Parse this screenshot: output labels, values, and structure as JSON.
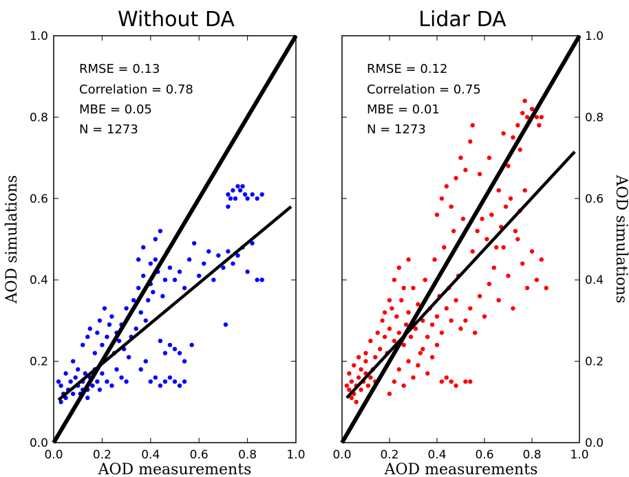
{
  "chart_data": [
    {
      "type": "scatter",
      "title": "Without DA",
      "xlabel": "AOD measurements",
      "ylabel": "AOD simulations",
      "xlim": [
        0.0,
        1.0
      ],
      "ylim": [
        0.0,
        1.0
      ],
      "xticks": [
        "0.0",
        "0.2",
        "0.4",
        "0.6",
        "0.8",
        "1.0"
      ],
      "yticks": [
        "0.0",
        "0.2",
        "0.4",
        "0.6",
        "0.8",
        "1.0"
      ],
      "ytick_side": "left",
      "ylabel_side": "left",
      "point_color": "#0000ff",
      "stats": [
        "RMSE = 0.13",
        "Correlation = 0.78",
        "MBE = 0.05",
        "N = 1273"
      ],
      "lines": [
        {
          "name": "1:1",
          "x": [
            0.0,
            1.0
          ],
          "y": [
            0.0,
            1.0
          ]
        },
        {
          "name": "fit",
          "x": [
            0.02,
            0.98
          ],
          "y": [
            0.105,
            0.58
          ]
        }
      ],
      "points": [
        [
          0.02,
          0.15
        ],
        [
          0.03,
          0.14
        ],
        [
          0.04,
          0.12
        ],
        [
          0.05,
          0.11
        ],
        [
          0.06,
          0.13
        ],
        [
          0.07,
          0.15
        ],
        [
          0.08,
          0.12
        ],
        [
          0.09,
          0.16
        ],
        [
          0.1,
          0.14
        ],
        [
          0.11,
          0.12
        ],
        [
          0.12,
          0.15
        ],
        [
          0.13,
          0.17
        ],
        [
          0.14,
          0.13
        ],
        [
          0.15,
          0.16
        ],
        [
          0.16,
          0.14
        ],
        [
          0.17,
          0.18
        ],
        [
          0.18,
          0.15
        ],
        [
          0.19,
          0.13
        ],
        [
          0.2,
          0.17
        ],
        [
          0.22,
          0.15
        ],
        [
          0.24,
          0.14
        ],
        [
          0.26,
          0.18
        ],
        [
          0.28,
          0.16
        ],
        [
          0.3,
          0.15
        ],
        [
          0.05,
          0.17
        ],
        [
          0.08,
          0.2
        ],
        [
          0.1,
          0.18
        ],
        [
          0.12,
          0.13
        ],
        [
          0.14,
          0.11
        ],
        [
          0.03,
          0.1
        ],
        [
          0.12,
          0.24
        ],
        [
          0.14,
          0.26
        ],
        [
          0.15,
          0.28
        ],
        [
          0.17,
          0.22
        ],
        [
          0.18,
          0.27
        ],
        [
          0.19,
          0.3
        ],
        [
          0.2,
          0.24
        ],
        [
          0.21,
          0.33
        ],
        [
          0.22,
          0.26
        ],
        [
          0.23,
          0.29
        ],
        [
          0.24,
          0.31
        ],
        [
          0.25,
          0.22
        ],
        [
          0.26,
          0.27
        ],
        [
          0.27,
          0.25
        ],
        [
          0.28,
          0.29
        ],
        [
          0.29,
          0.23
        ],
        [
          0.3,
          0.33
        ],
        [
          0.31,
          0.21
        ],
        [
          0.32,
          0.26
        ],
        [
          0.33,
          0.35
        ],
        [
          0.34,
          0.28
        ],
        [
          0.35,
          0.38
        ],
        [
          0.36,
          0.32
        ],
        [
          0.37,
          0.41
        ],
        [
          0.38,
          0.3
        ],
        [
          0.39,
          0.35
        ],
        [
          0.4,
          0.44
        ],
        [
          0.41,
          0.37
        ],
        [
          0.42,
          0.5
        ],
        [
          0.43,
          0.42
        ],
        [
          0.44,
          0.52
        ],
        [
          0.45,
          0.36
        ],
        [
          0.46,
          0.4
        ],
        [
          0.47,
          0.47
        ],
        [
          0.48,
          0.43
        ],
        [
          0.35,
          0.45
        ],
        [
          0.37,
          0.48
        ],
        [
          0.4,
          0.39
        ],
        [
          0.42,
          0.45
        ],
        [
          0.44,
          0.25
        ],
        [
          0.46,
          0.22
        ],
        [
          0.48,
          0.24
        ],
        [
          0.5,
          0.23
        ],
        [
          0.52,
          0.22
        ],
        [
          0.54,
          0.2
        ],
        [
          0.4,
          0.15
        ],
        [
          0.42,
          0.16
        ],
        [
          0.44,
          0.14
        ],
        [
          0.46,
          0.15
        ],
        [
          0.48,
          0.16
        ],
        [
          0.5,
          0.15
        ],
        [
          0.52,
          0.14
        ],
        [
          0.54,
          0.15
        ],
        [
          0.36,
          0.18
        ],
        [
          0.38,
          0.2
        ],
        [
          0.5,
          0.4
        ],
        [
          0.52,
          0.42
        ],
        [
          0.54,
          0.38
        ],
        [
          0.56,
          0.45
        ],
        [
          0.58,
          0.49
        ],
        [
          0.6,
          0.41
        ],
        [
          0.62,
          0.44
        ],
        [
          0.64,
          0.47
        ],
        [
          0.66,
          0.4
        ],
        [
          0.68,
          0.46
        ],
        [
          0.7,
          0.43
        ],
        [
          0.72,
          0.47
        ],
        [
          0.74,
          0.44
        ],
        [
          0.76,
          0.46
        ],
        [
          0.78,
          0.48
        ],
        [
          0.8,
          0.42
        ],
        [
          0.82,
          0.49
        ],
        [
          0.84,
          0.4
        ],
        [
          0.86,
          0.4
        ],
        [
          0.57,
          0.24
        ],
        [
          0.71,
          0.29
        ],
        [
          0.72,
          0.58
        ],
        [
          0.73,
          0.6
        ],
        [
          0.74,
          0.62
        ],
        [
          0.75,
          0.6
        ],
        [
          0.76,
          0.63
        ],
        [
          0.78,
          0.63
        ],
        [
          0.79,
          0.61
        ],
        [
          0.8,
          0.6
        ],
        [
          0.82,
          0.61
        ],
        [
          0.84,
          0.6
        ],
        [
          0.86,
          0.61
        ],
        [
          0.72,
          0.61
        ],
        [
          0.77,
          0.62
        ]
      ]
    },
    {
      "type": "scatter",
      "title": "Lidar DA",
      "xlabel": "AOD measurements",
      "ylabel": "AOD simulations",
      "xlim": [
        0.0,
        1.0
      ],
      "ylim": [
        0.0,
        1.0
      ],
      "xticks": [
        "0.0",
        "0.2",
        "0.4",
        "0.6",
        "0.8",
        "1.0"
      ],
      "yticks": [
        "0.0",
        "0.2",
        "0.4",
        "0.6",
        "0.8",
        "1.0"
      ],
      "ytick_side": "right",
      "ylabel_side": "right",
      "point_color": "#ff0000",
      "stats": [
        "RMSE = 0.12",
        "Correlation = 0.75",
        "MBE = 0.01",
        "N = 1273"
      ],
      "lines": [
        {
          "name": "1:1",
          "x": [
            0.0,
            1.0
          ],
          "y": [
            0.0,
            1.0
          ]
        },
        {
          "name": "fit",
          "x": [
            0.02,
            0.98
          ],
          "y": [
            0.11,
            0.715
          ]
        }
      ],
      "points": [
        [
          0.02,
          0.14
        ],
        [
          0.03,
          0.13
        ],
        [
          0.04,
          0.15
        ],
        [
          0.05,
          0.12
        ],
        [
          0.06,
          0.14
        ],
        [
          0.07,
          0.16
        ],
        [
          0.08,
          0.13
        ],
        [
          0.09,
          0.15
        ],
        [
          0.1,
          0.17
        ],
        [
          0.11,
          0.14
        ],
        [
          0.12,
          0.16
        ],
        [
          0.13,
          0.18
        ],
        [
          0.14,
          0.15
        ],
        [
          0.03,
          0.17
        ],
        [
          0.05,
          0.19
        ],
        [
          0.07,
          0.21
        ],
        [
          0.04,
          0.11
        ],
        [
          0.06,
          0.1
        ],
        [
          0.08,
          0.18
        ],
        [
          0.1,
          0.2
        ],
        [
          0.1,
          0.22
        ],
        [
          0.12,
          0.25
        ],
        [
          0.14,
          0.21
        ],
        [
          0.15,
          0.27
        ],
        [
          0.16,
          0.23
        ],
        [
          0.17,
          0.3
        ],
        [
          0.18,
          0.26
        ],
        [
          0.19,
          0.22
        ],
        [
          0.2,
          0.28
        ],
        [
          0.21,
          0.33
        ],
        [
          0.22,
          0.25
        ],
        [
          0.23,
          0.31
        ],
        [
          0.24,
          0.27
        ],
        [
          0.25,
          0.35
        ],
        [
          0.26,
          0.24
        ],
        [
          0.27,
          0.29
        ],
        [
          0.28,
          0.32
        ],
        [
          0.29,
          0.26
        ],
        [
          0.3,
          0.38
        ],
        [
          0.31,
          0.28
        ],
        [
          0.32,
          0.34
        ],
        [
          0.33,
          0.22
        ],
        [
          0.34,
          0.3
        ],
        [
          0.35,
          0.4
        ],
        [
          0.36,
          0.26
        ],
        [
          0.37,
          0.33
        ],
        [
          0.38,
          0.29
        ],
        [
          0.39,
          0.45
        ],
        [
          0.4,
          0.31
        ],
        [
          0.41,
          0.36
        ],
        [
          0.42,
          0.27
        ],
        [
          0.43,
          0.48
        ],
        [
          0.44,
          0.33
        ],
        [
          0.45,
          0.38
        ],
        [
          0.46,
          0.3
        ],
        [
          0.47,
          0.52
        ],
        [
          0.48,
          0.35
        ],
        [
          0.49,
          0.41
        ],
        [
          0.5,
          0.28
        ],
        [
          0.51,
          0.55
        ],
        [
          0.2,
          0.12
        ],
        [
          0.22,
          0.15
        ],
        [
          0.24,
          0.18
        ],
        [
          0.26,
          0.14
        ],
        [
          0.28,
          0.2
        ],
        [
          0.3,
          0.16
        ],
        [
          0.32,
          0.19
        ],
        [
          0.34,
          0.23
        ],
        [
          0.36,
          0.17
        ],
        [
          0.38,
          0.21
        ],
        [
          0.4,
          0.24
        ],
        [
          0.42,
          0.15
        ],
        [
          0.44,
          0.16
        ],
        [
          0.46,
          0.15
        ],
        [
          0.48,
          0.14
        ],
        [
          0.52,
          0.15
        ],
        [
          0.54,
          0.15
        ],
        [
          0.18,
          0.32
        ],
        [
          0.2,
          0.35
        ],
        [
          0.22,
          0.4
        ],
        [
          0.24,
          0.43
        ],
        [
          0.26,
          0.38
        ],
        [
          0.28,
          0.45
        ],
        [
          0.52,
          0.3
        ],
        [
          0.54,
          0.33
        ],
        [
          0.56,
          0.27
        ],
        [
          0.58,
          0.36
        ],
        [
          0.6,
          0.31
        ],
        [
          0.62,
          0.39
        ],
        [
          0.64,
          0.43
        ],
        [
          0.66,
          0.35
        ],
        [
          0.68,
          0.48
        ],
        [
          0.7,
          0.41
        ],
        [
          0.72,
          0.33
        ],
        [
          0.74,
          0.5
        ],
        [
          0.76,
          0.44
        ],
        [
          0.78,
          0.38
        ],
        [
          0.8,
          0.47
        ],
        [
          0.82,
          0.4
        ],
        [
          0.84,
          0.45
        ],
        [
          0.86,
          0.38
        ],
        [
          0.55,
          0.47
        ],
        [
          0.57,
          0.52
        ],
        [
          0.59,
          0.55
        ],
        [
          0.61,
          0.5
        ],
        [
          0.63,
          0.56
        ],
        [
          0.65,
          0.48
        ],
        [
          0.67,
          0.53
        ],
        [
          0.69,
          0.58
        ],
        [
          0.71,
          0.6
        ],
        [
          0.73,
          0.52
        ],
        [
          0.75,
          0.57
        ],
        [
          0.77,
          0.62
        ],
        [
          0.4,
          0.56
        ],
        [
          0.42,
          0.6
        ],
        [
          0.44,
          0.63
        ],
        [
          0.46,
          0.58
        ],
        [
          0.48,
          0.65
        ],
        [
          0.5,
          0.7
        ],
        [
          0.52,
          0.67
        ],
        [
          0.54,
          0.74
        ],
        [
          0.55,
          0.78
        ],
        [
          0.58,
          0.66
        ],
        [
          0.62,
          0.7
        ],
        [
          0.66,
          0.62
        ],
        [
          0.7,
          0.68
        ],
        [
          0.72,
          0.75
        ],
        [
          0.74,
          0.78
        ],
        [
          0.76,
          0.81
        ],
        [
          0.77,
          0.84
        ],
        [
          0.78,
          0.8
        ],
        [
          0.79,
          0.79
        ],
        [
          0.8,
          0.82
        ],
        [
          0.82,
          0.8
        ],
        [
          0.83,
          0.78
        ],
        [
          0.84,
          0.8
        ],
        [
          0.75,
          0.72
        ],
        [
          0.68,
          0.76
        ]
      ]
    }
  ]
}
